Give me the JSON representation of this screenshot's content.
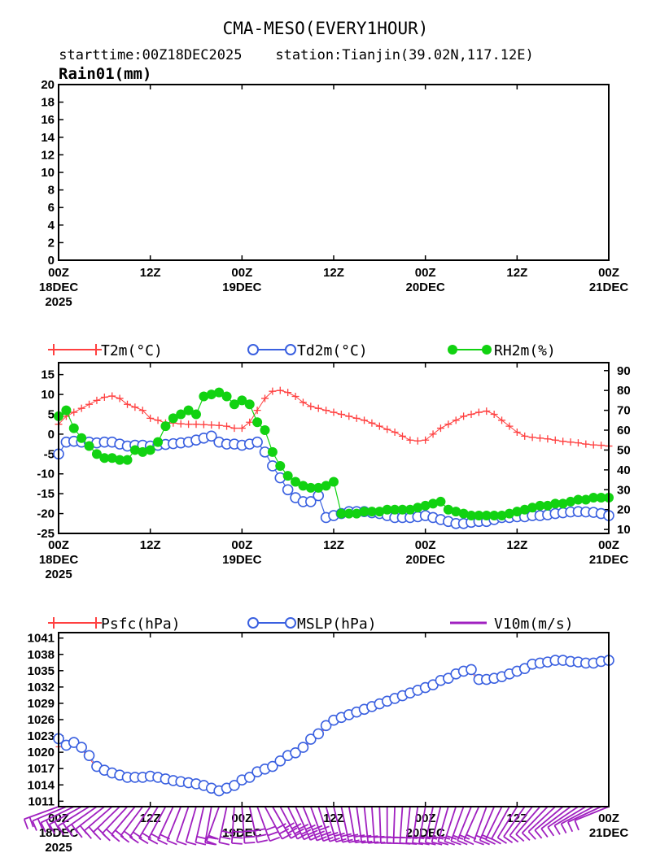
{
  "figure": {
    "title": "CMA-MESO(EVERY1HOUR)",
    "subtitle": "starttime:00Z18DEC2025    station:Tianjin(39.02N,117.12E)"
  },
  "chart_data": [
    {
      "type": "bar",
      "id": "rain",
      "ylabel": "Rain01(mm)",
      "ylim": [
        0,
        20
      ],
      "yticks": [
        0,
        2,
        4,
        6,
        8,
        10,
        12,
        14,
        16,
        18,
        20
      ],
      "xlim": [
        0,
        72
      ],
      "xticks": [
        {
          "h": 0,
          "l1": "00Z",
          "l2": "18DEC",
          "l3": "2025"
        },
        {
          "h": 12,
          "l1": "12Z",
          "l2": "",
          "l3": ""
        },
        {
          "h": 24,
          "l1": "00Z",
          "l2": "19DEC",
          "l3": ""
        },
        {
          "h": 36,
          "l1": "12Z",
          "l2": "",
          "l3": ""
        },
        {
          "h": 48,
          "l1": "00Z",
          "l2": "20DEC",
          "l3": ""
        },
        {
          "h": 60,
          "l1": "12Z",
          "l2": "",
          "l3": ""
        },
        {
          "h": 72,
          "l1": "00Z",
          "l2": "21DEC",
          "l3": ""
        }
      ],
      "values": []
    },
    {
      "type": "line",
      "id": "temp",
      "legend": [
        "T2m(°C)",
        "Td2m(°C)",
        "RH2m(%)"
      ],
      "ylim": [
        -25,
        18
      ],
      "yticks": [
        -25,
        -20,
        -15,
        -10,
        -5,
        0,
        5,
        10,
        15
      ],
      "y2lim": [
        8,
        94
      ],
      "y2ticks": [
        10,
        20,
        30,
        40,
        50,
        60,
        70,
        80,
        90
      ],
      "xlim": [
        0,
        72
      ],
      "series": [
        {
          "name": "T2m",
          "axis": "left",
          "color": "#ff4040",
          "marker": "plus",
          "values": [
            2.5,
            4.5,
            5.5,
            6.5,
            7.5,
            8.5,
            9.3,
            9.6,
            9.0,
            7.5,
            6.8,
            6.0,
            4.0,
            3.5,
            2.8,
            2.8,
            2.6,
            2.5,
            2.5,
            2.4,
            2.3,
            2.2,
            2.0,
            1.5,
            1.5,
            3.0,
            6.0,
            9.0,
            10.8,
            11.0,
            10.5,
            9.5,
            8.0,
            7.0,
            6.5,
            6.0,
            5.5,
            5.0,
            4.5,
            4.0,
            3.5,
            2.8,
            2.0,
            1.2,
            0.5,
            -0.5,
            -1.5,
            -1.7,
            -1.5,
            0.0,
            1.5,
            2.5,
            3.5,
            4.5,
            5.0,
            5.5,
            5.8,
            5.0,
            3.5,
            2.0,
            0.5,
            -0.5,
            -0.8,
            -1.0,
            -1.2,
            -1.5,
            -1.8,
            -2.0,
            -2.2,
            -2.5,
            -2.7,
            -2.8,
            -3.0
          ]
        },
        {
          "name": "Td2m",
          "axis": "left",
          "color": "#3a60e0",
          "marker": "circle",
          "values": [
            -5.0,
            -2.0,
            -1.8,
            -2.0,
            -2.0,
            -2.2,
            -2.0,
            -2.0,
            -2.5,
            -3.0,
            -2.8,
            -2.8,
            -3.0,
            -2.8,
            -2.6,
            -2.4,
            -2.2,
            -2.0,
            -1.5,
            -1.0,
            -0.5,
            -2.0,
            -2.5,
            -2.5,
            -2.8,
            -2.5,
            -2.0,
            -4.5,
            -8.0,
            -11.0,
            -14.0,
            -16.0,
            -17.0,
            -17.0,
            -15.5,
            -21.0,
            -20.5,
            -20.0,
            -19.5,
            -19.5,
            -19.5,
            -19.8,
            -20.0,
            -20.5,
            -21.0,
            -21.0,
            -21.0,
            -20.8,
            -20.5,
            -21.0,
            -21.5,
            -22.0,
            -22.5,
            -22.5,
            -22.2,
            -22.0,
            -22.0,
            -21.5,
            -21.0,
            -21.0,
            -20.8,
            -20.8,
            -20.5,
            -20.5,
            -20.3,
            -20.0,
            -19.8,
            -19.6,
            -19.5,
            -19.6,
            -19.7,
            -20.0,
            -20.5
          ]
        },
        {
          "name": "RH2m",
          "axis": "right",
          "color": "#11d211",
          "marker": "dot",
          "values": [
            67,
            70,
            61,
            56,
            52,
            48,
            46,
            46,
            45,
            45,
            50,
            49,
            50,
            54,
            62,
            66,
            68,
            70,
            68,
            77,
            78,
            79,
            77,
            73,
            75,
            73,
            64,
            60,
            49,
            42,
            37,
            34,
            32,
            31,
            31,
            32,
            34,
            18,
            18,
            18,
            19,
            19,
            19,
            20,
            20,
            20,
            20,
            21,
            22,
            23,
            24,
            20,
            19,
            18,
            17,
            17,
            17,
            17,
            17,
            18,
            19,
            20,
            21,
            22,
            22,
            23,
            23,
            24,
            25,
            25,
            26,
            26,
            26
          ]
        }
      ]
    },
    {
      "type": "line",
      "id": "pressure",
      "legend": [
        "Psfc(hPa)",
        "MSLP(hPa)",
        "V10m(m/s)"
      ],
      "ylim": [
        1010,
        1042
      ],
      "yticks": [
        1011,
        1014,
        1017,
        1020,
        1023,
        1026,
        1029,
        1032,
        1035,
        1038,
        1041
      ],
      "xlim": [
        0,
        72
      ],
      "series": [
        {
          "name": "Psfc",
          "color": "#ff4040",
          "marker": "plus",
          "values": [
            1021.0,
            1021.0,
            1021.5,
            1020.5,
            1019.0,
            1017.0,
            1016.3,
            1015.8,
            1015.4,
            1015.0,
            1015.0,
            1015.0,
            1015.2,
            1015.0,
            1014.7,
            1014.4,
            1014.2,
            1014.0,
            1013.8,
            1013.5,
            1013.0,
            1012.5,
            1013.0,
            1013.5,
            1014.5,
            1015.0,
            1016.0,
            1016.5,
            1017.0,
            1018.0,
            1019.0,
            1019.5,
            1020.5,
            1022.0,
            1023.0,
            1024.5,
            1025.5,
            1026.0,
            1026.5,
            1027.0,
            1027.5,
            1028.0,
            1028.5,
            1029.0,
            1029.5,
            1030.0,
            1030.5,
            1031.0,
            1031.5,
            1032.0,
            1032.8,
            1033.2,
            1034.0,
            1034.5,
            1034.8,
            1033.0,
            1033.0,
            1033.2,
            1033.5,
            1034.0,
            1034.5,
            1035.0,
            1035.8,
            1036.0,
            1036.2,
            1036.5,
            1036.5,
            1036.3,
            1036.2,
            1036.0,
            1036.0,
            1036.3,
            1036.5
          ]
        },
        {
          "name": "MSLP",
          "color": "#3a60e0",
          "marker": "circle",
          "values": [
            1022.5,
            1021.3,
            1021.8,
            1020.9,
            1019.4,
            1017.4,
            1016.7,
            1016.2,
            1015.8,
            1015.4,
            1015.4,
            1015.4,
            1015.6,
            1015.4,
            1015.1,
            1014.8,
            1014.6,
            1014.4,
            1014.2,
            1013.9,
            1013.4,
            1012.9,
            1013.4,
            1013.9,
            1014.9,
            1015.4,
            1016.4,
            1016.9,
            1017.4,
            1018.4,
            1019.4,
            1019.9,
            1020.9,
            1022.4,
            1023.4,
            1024.9,
            1025.9,
            1026.4,
            1026.9,
            1027.4,
            1027.9,
            1028.4,
            1028.9,
            1029.4,
            1029.9,
            1030.4,
            1030.9,
            1031.4,
            1031.9,
            1032.4,
            1033.2,
            1033.6,
            1034.4,
            1034.9,
            1035.2,
            1033.4,
            1033.4,
            1033.6,
            1033.9,
            1034.4,
            1034.9,
            1035.4,
            1036.2,
            1036.4,
            1036.6,
            1036.9,
            1036.9,
            1036.7,
            1036.6,
            1036.4,
            1036.4,
            1036.7,
            1036.9
          ]
        },
        {
          "name": "V10m",
          "color": "#a020c0",
          "marker": "barb",
          "values": [
            5,
            5,
            6,
            6,
            6,
            5,
            5,
            5,
            5,
            6,
            6,
            6,
            5,
            5,
            5,
            5,
            4,
            4,
            4,
            5,
            6,
            7,
            8,
            8,
            9,
            9,
            9,
            9,
            9,
            9,
            8,
            8,
            8,
            8,
            7,
            7,
            7,
            7,
            7,
            7,
            7,
            6,
            6,
            6,
            6,
            6,
            6,
            6,
            6,
            6,
            6,
            6,
            6,
            6,
            6,
            6,
            5,
            5,
            4,
            4,
            4,
            3,
            3,
            3,
            3,
            3,
            3,
            3,
            3,
            4,
            4,
            4,
            4
          ]
        }
      ]
    }
  ]
}
